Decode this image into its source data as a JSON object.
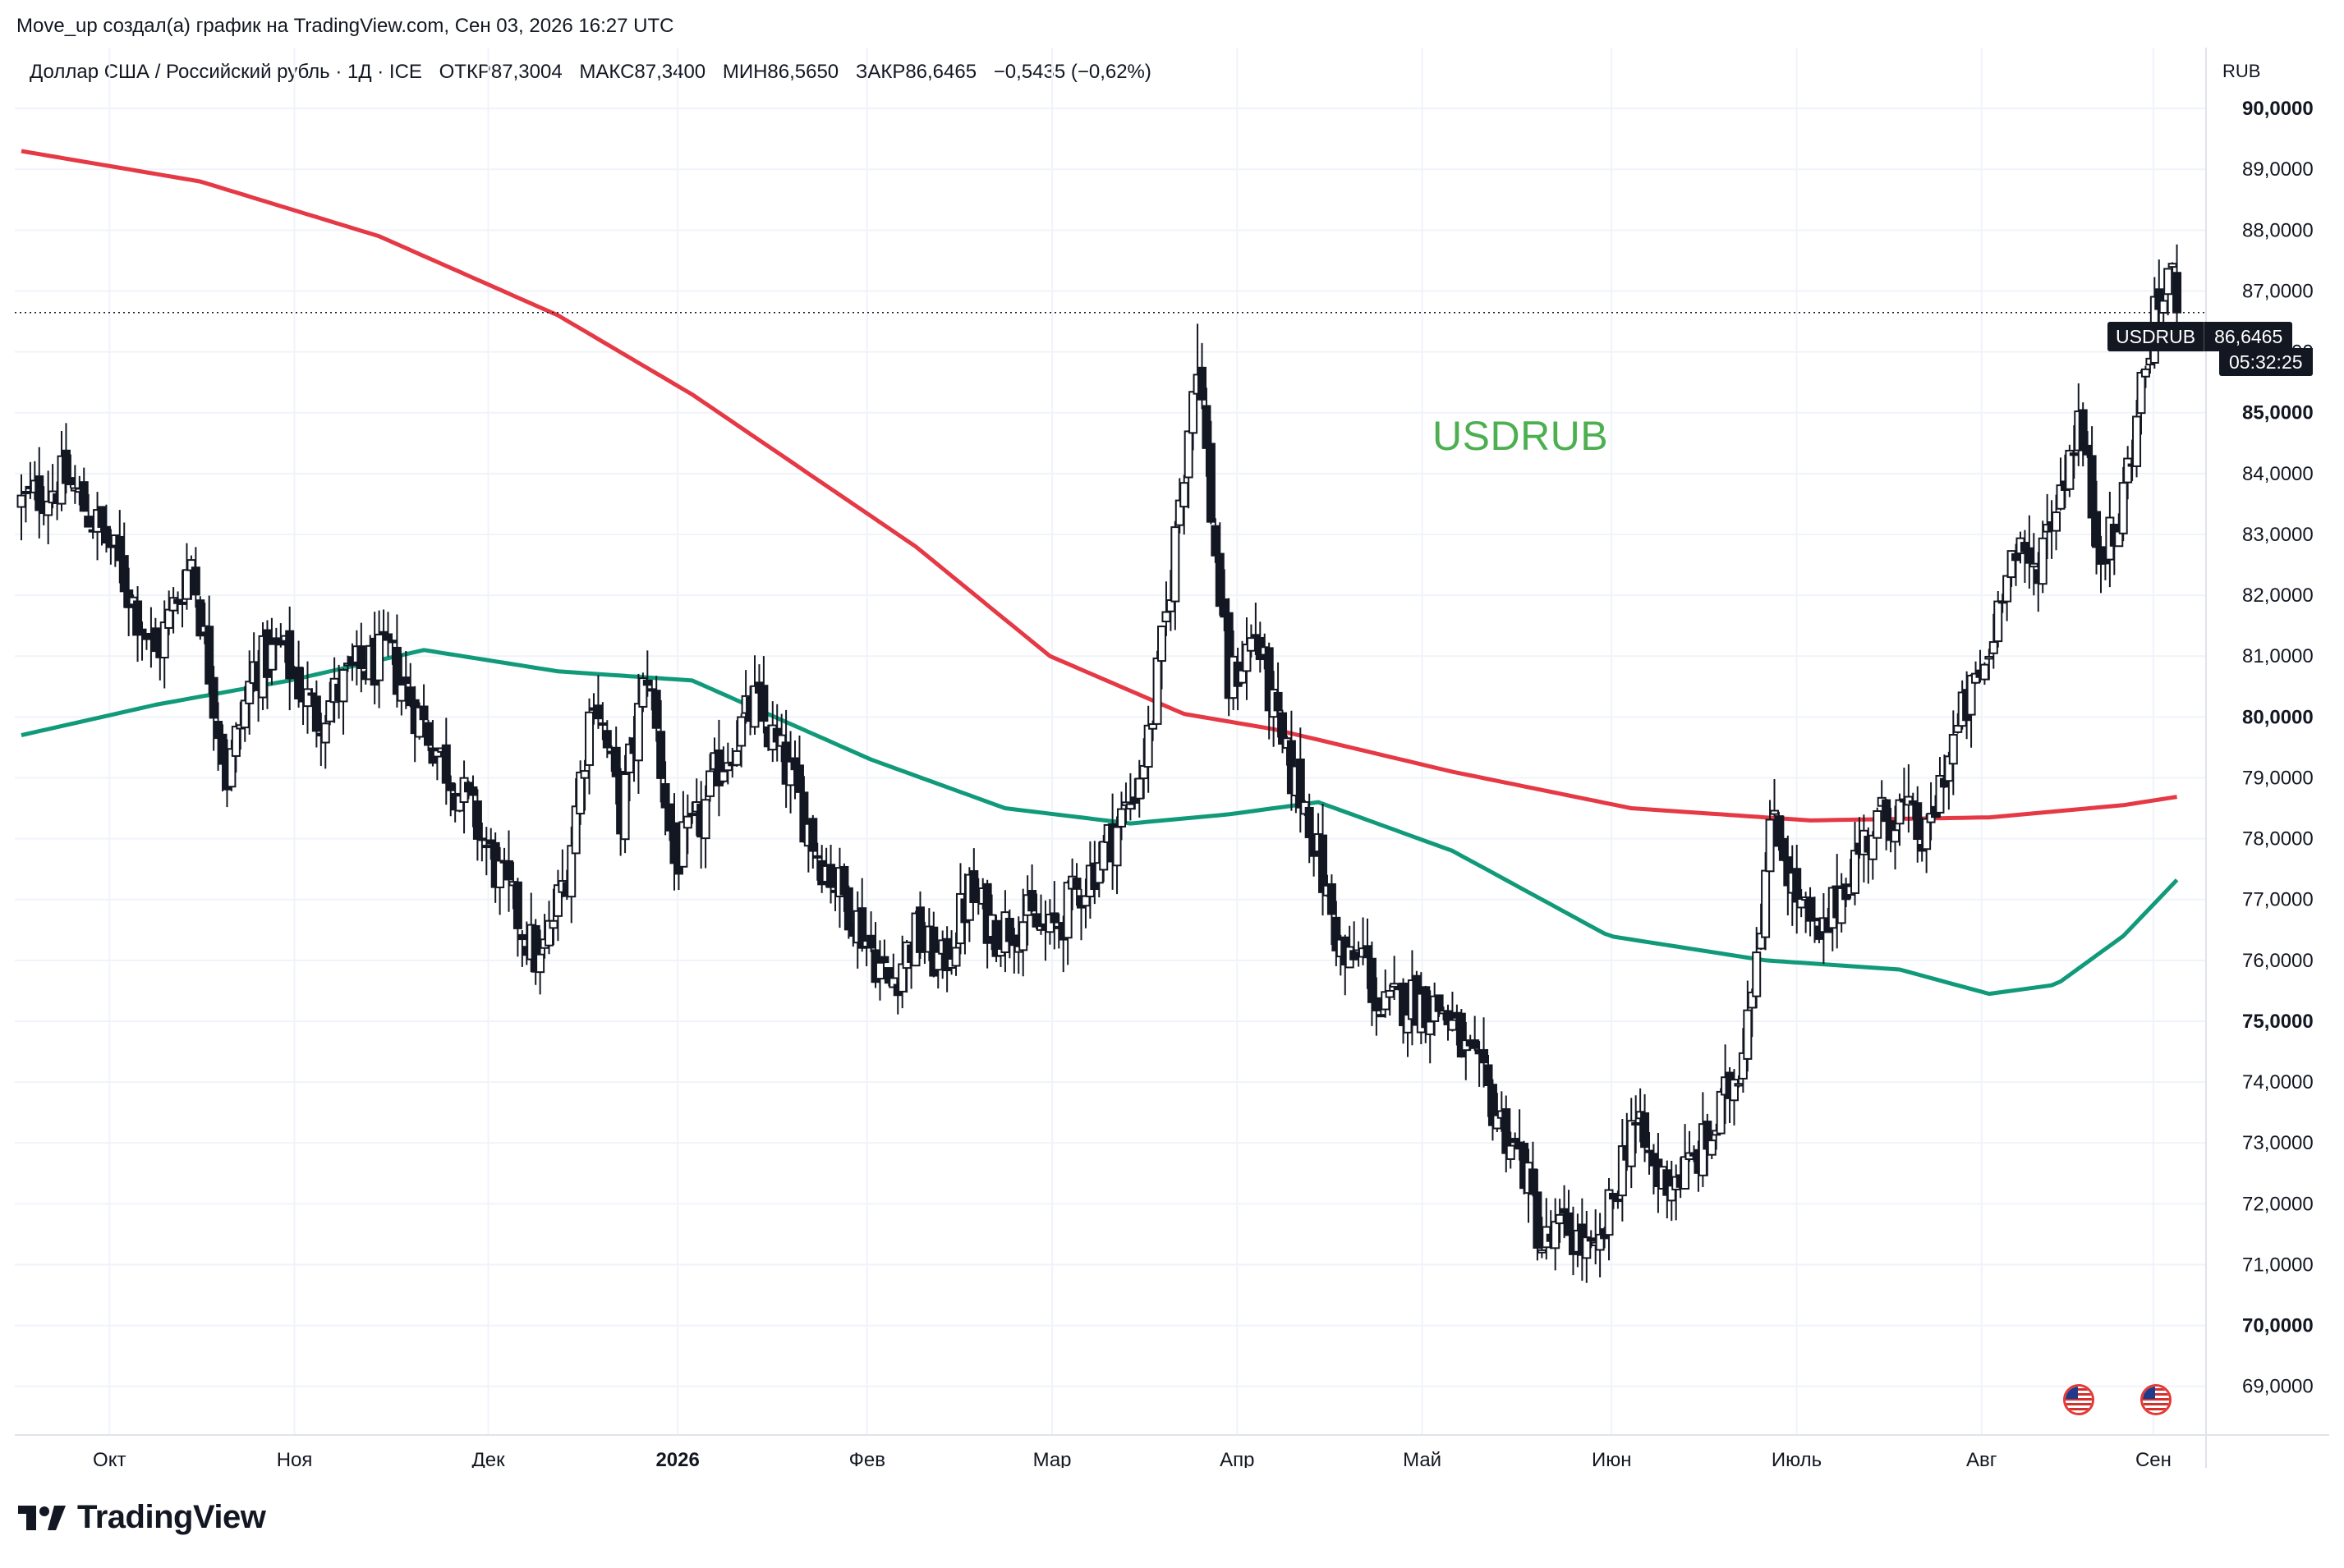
{
  "header": {
    "caption": "Move_up создал(а) график на TradingView.com, Сен 03, 2026 16:27 UTC",
    "symbol_desc": "Доллар США / Российский рубль · 1Д · ICE",
    "open": "ОТКР87,3004",
    "high": "МАКС87,3400",
    "low": "МИН86,5650",
    "close": "ЗАКР86,6465",
    "change": "−0,5435 (−0,62%)"
  },
  "chart_data": {
    "type": "candlestick",
    "title": "USDRUB",
    "currency": "RUB",
    "x_labels": [
      "Окт",
      "Ноя",
      "Дек",
      "2026",
      "Фев",
      "Мар",
      "Апр",
      "Май",
      "Июн",
      "Июль",
      "Авг",
      "Сен"
    ],
    "ylim": [
      68.2,
      91.0
    ],
    "y_ticks": [
      "69,0000",
      "70,0000",
      "71,0000",
      "72,0000",
      "73,0000",
      "74,0000",
      "75,0000",
      "76,0000",
      "77,0000",
      "78,0000",
      "79,0000",
      "80,0000",
      "81,0000",
      "82,0000",
      "83,0000",
      "84,0000",
      "85,0000",
      "86,0000",
      "87,0000",
      "88,0000",
      "89,0000",
      "90,0000"
    ],
    "current_price": {
      "symbol": "USDRUB",
      "value": "86,6465",
      "countdown": "05:32:25"
    },
    "grid": true,
    "close_path": [
      [
        0,
        83.5
      ],
      [
        10,
        83.9
      ],
      [
        20,
        82.8
      ],
      [
        30,
        81.0
      ],
      [
        38,
        82.6
      ],
      [
        46,
        79.0
      ],
      [
        52,
        80.8
      ],
      [
        58,
        81.1
      ],
      [
        66,
        80.0
      ],
      [
        74,
        80.7
      ],
      [
        82,
        81.0
      ],
      [
        92,
        79.6
      ],
      [
        100,
        78.5
      ],
      [
        108,
        77.2
      ],
      [
        116,
        75.9
      ],
      [
        122,
        77.5
      ],
      [
        128,
        80.5
      ],
      [
        134,
        78.4
      ],
      [
        140,
        80.8
      ],
      [
        146,
        77.6
      ],
      [
        152,
        78.3
      ],
      [
        156,
        79.2
      ],
      [
        164,
        80.2
      ],
      [
        172,
        79.0
      ],
      [
        178,
        77.8
      ],
      [
        186,
        76.8
      ],
      [
        194,
        75.6
      ],
      [
        200,
        76.4
      ],
      [
        206,
        75.9
      ],
      [
        212,
        77.1
      ],
      [
        218,
        76.5
      ],
      [
        224,
        76.7
      ],
      [
        230,
        76.4
      ],
      [
        236,
        77.1
      ],
      [
        242,
        77.8
      ],
      [
        248,
        78.6
      ],
      [
        252,
        79.6
      ],
      [
        256,
        81.6
      ],
      [
        259,
        83.6
      ],
      [
        263,
        86.0
      ],
      [
        266,
        83.4
      ],
      [
        270,
        80.5
      ],
      [
        276,
        81.4
      ],
      [
        282,
        79.4
      ],
      [
        288,
        78.4
      ],
      [
        292,
        77.0
      ],
      [
        296,
        75.9
      ],
      [
        300,
        76.1
      ],
      [
        304,
        75.1
      ],
      [
        310,
        75.4
      ],
      [
        318,
        75.2
      ],
      [
        324,
        74.3
      ],
      [
        330,
        73.5
      ],
      [
        336,
        72.6
      ],
      [
        340,
        71.3
      ],
      [
        346,
        71.6
      ],
      [
        352,
        71.0
      ],
      [
        356,
        72.1
      ],
      [
        360,
        73.4
      ],
      [
        366,
        72.4
      ],
      [
        372,
        72.5
      ],
      [
        378,
        73.1
      ],
      [
        384,
        74.3
      ],
      [
        388,
        76.3
      ],
      [
        392,
        78.5
      ],
      [
        396,
        77.2
      ],
      [
        402,
        76.2
      ],
      [
        408,
        77.4
      ],
      [
        414,
        78.2
      ],
      [
        420,
        78.5
      ],
      [
        426,
        77.9
      ],
      [
        430,
        79.2
      ],
      [
        434,
        80.0
      ],
      [
        440,
        81.0
      ],
      [
        444,
        82.7
      ],
      [
        450,
        82.4
      ],
      [
        456,
        83.8
      ],
      [
        460,
        84.9
      ],
      [
        464,
        83.0
      ],
      [
        468,
        82.8
      ],
      [
        472,
        84.5
      ],
      [
        476,
        86.2
      ],
      [
        480,
        87.3
      ],
      [
        483,
        86.6465
      ]
    ],
    "series": [
      {
        "name": "MA red",
        "color": "#e53945",
        "points": [
          [
            0,
            89.3
          ],
          [
            40,
            88.8
          ],
          [
            80,
            87.9
          ],
          [
            120,
            86.6
          ],
          [
            150,
            85.3
          ],
          [
            200,
            82.8
          ],
          [
            230,
            81.0
          ],
          [
            260,
            80.05
          ],
          [
            280,
            79.8
          ],
          [
            320,
            79.1
          ],
          [
            360,
            78.5
          ],
          [
            400,
            78.3
          ],
          [
            440,
            78.35
          ],
          [
            470,
            78.55
          ],
          [
            483,
            78.7
          ]
        ]
      },
      {
        "name": "MA green",
        "color": "#119a7a",
        "points": [
          [
            0,
            79.7
          ],
          [
            30,
            80.2
          ],
          [
            60,
            80.6
          ],
          [
            90,
            81.1
          ],
          [
            120,
            80.75
          ],
          [
            150,
            80.6
          ],
          [
            190,
            79.3
          ],
          [
            220,
            78.5
          ],
          [
            248,
            78.25
          ],
          [
            270,
            78.4
          ],
          [
            290,
            78.6
          ],
          [
            320,
            77.8
          ],
          [
            355,
            76.4
          ],
          [
            390,
            76.0
          ],
          [
            420,
            75.85
          ],
          [
            440,
            75.45
          ],
          [
            455,
            75.6
          ],
          [
            470,
            76.4
          ],
          [
            483,
            77.4
          ]
        ]
      }
    ]
  },
  "footer": {
    "brand": "TradingView",
    "events": [
      "us-flag-icon",
      "us-flag-icon"
    ]
  },
  "colors": {
    "bg": "#ffffff",
    "candle": "#131722",
    "grid": "#f0f3fa",
    "watermark": "#4caf50"
  }
}
